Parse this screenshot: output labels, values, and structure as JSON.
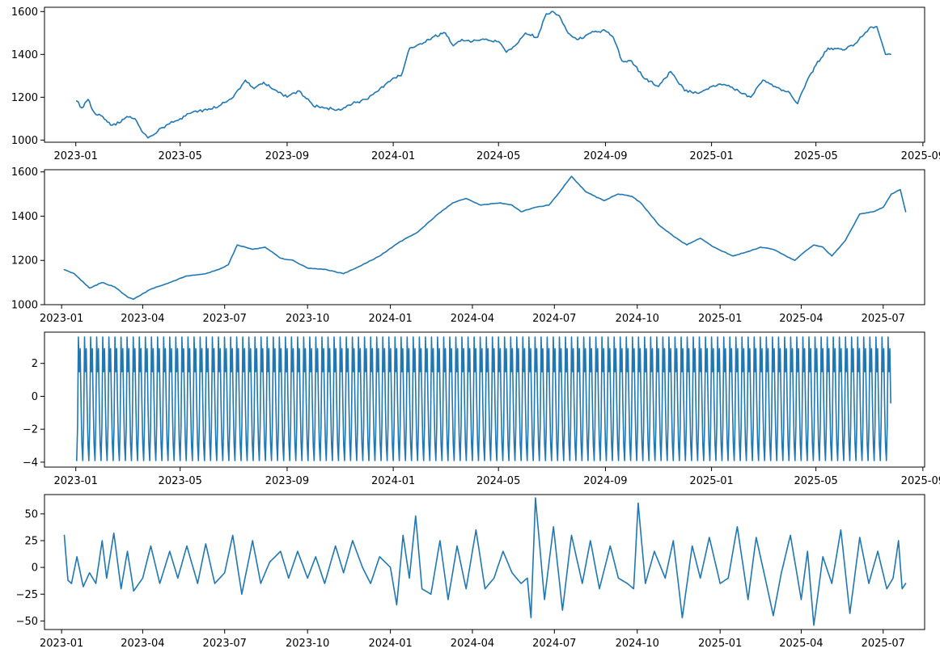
{
  "figure": {
    "line_color": "#1f77b4"
  },
  "chart_data": [
    {
      "type": "line",
      "series": [
        {
          "x": [
            "2023-01-02",
            "2023-01-08",
            "2023-01-15",
            "2023-01-22",
            "2023-02-01",
            "2023-02-10",
            "2023-02-20",
            "2023-03-01",
            "2023-03-10",
            "2023-03-18",
            "2023-03-25",
            "2023-04-05",
            "2023-04-15",
            "2023-05-01",
            "2023-05-15",
            "2023-06-01",
            "2023-06-15",
            "2023-07-01",
            "2023-07-15",
            "2023-07-25",
            "2023-08-05",
            "2023-08-20",
            "2023-09-01",
            "2023-09-15",
            "2023-10-01",
            "2023-10-15",
            "2023-11-01",
            "2023-11-15",
            "2023-12-01",
            "2023-12-15",
            "2024-01-01",
            "2024-01-10",
            "2024-01-20",
            "2024-02-01",
            "2024-02-15",
            "2024-03-01",
            "2024-03-10",
            "2024-03-20",
            "2024-04-01",
            "2024-04-15",
            "2024-05-01",
            "2024-05-10",
            "2024-05-20",
            "2024-06-01",
            "2024-06-15",
            "2024-06-25",
            "2024-07-01",
            "2024-07-10",
            "2024-07-20",
            "2024-08-01",
            "2024-08-15",
            "2024-09-01",
            "2024-09-10",
            "2024-09-20",
            "2024-10-01",
            "2024-10-15",
            "2024-11-01",
            "2024-11-15",
            "2024-12-01",
            "2024-12-15",
            "2025-01-01",
            "2025-01-15",
            "2025-02-01",
            "2025-02-15",
            "2025-03-01",
            "2025-03-15",
            "2025-04-01",
            "2025-04-10",
            "2025-04-20",
            "2025-05-01",
            "2025-05-15",
            "2025-06-01",
            "2025-06-15",
            "2025-07-01",
            "2025-07-10",
            "2025-07-20",
            "2025-07-26"
          ],
          "y": [
            1183,
            1150,
            1190,
            1130,
            1110,
            1070,
            1080,
            1110,
            1100,
            1040,
            1010,
            1040,
            1070,
            1100,
            1130,
            1140,
            1160,
            1200,
            1280,
            1240,
            1270,
            1230,
            1200,
            1230,
            1160,
            1150,
            1140,
            1170,
            1190,
            1230,
            1290,
            1300,
            1430,
            1450,
            1480,
            1500,
            1440,
            1470,
            1460,
            1470,
            1460,
            1410,
            1440,
            1500,
            1480,
            1590,
            1600,
            1580,
            1500,
            1470,
            1500,
            1510,
            1480,
            1370,
            1370,
            1290,
            1250,
            1320,
            1230,
            1220,
            1250,
            1260,
            1230,
            1200,
            1280,
            1250,
            1220,
            1170,
            1270,
            1350,
            1430,
            1420,
            1450,
            1520,
            1530,
            1400,
            1400
          ]
        }
      ],
      "xlim": [
        "2022-11-26",
        "2025-09-03"
      ],
      "ylim": [
        990,
        1620
      ],
      "x_ticks": [
        {
          "value": "2023-01-01",
          "label": "2023-01"
        },
        {
          "value": "2023-05-01",
          "label": "2023-05"
        },
        {
          "value": "2023-09-01",
          "label": "2023-09"
        },
        {
          "value": "2024-01-01",
          "label": "2024-01"
        },
        {
          "value": "2024-05-01",
          "label": "2024-05"
        },
        {
          "value": "2024-09-01",
          "label": "2024-09"
        },
        {
          "value": "2025-01-01",
          "label": "2025-01"
        },
        {
          "value": "2025-05-01",
          "label": "2025-05"
        },
        {
          "value": "2025-09-01",
          "label": "2025-09"
        }
      ],
      "y_ticks": [
        {
          "value": 1000,
          "label": "1000"
        },
        {
          "value": 1200,
          "label": "1200"
        },
        {
          "value": 1400,
          "label": "1400"
        },
        {
          "value": 1600,
          "label": "1600"
        }
      ],
      "grid": false
    },
    {
      "type": "line",
      "series": [
        {
          "x": [
            "2023-01-04",
            "2023-01-15",
            "2023-02-01",
            "2023-02-15",
            "2023-03-01",
            "2023-03-15",
            "2023-03-22",
            "2023-04-10",
            "2023-05-01",
            "2023-05-20",
            "2023-06-10",
            "2023-06-25",
            "2023-07-05",
            "2023-07-15",
            "2023-08-01",
            "2023-08-15",
            "2023-09-01",
            "2023-09-15",
            "2023-10-01",
            "2023-10-20",
            "2023-11-10",
            "2023-12-01",
            "2023-12-20",
            "2024-01-10",
            "2024-02-01",
            "2024-02-20",
            "2024-03-10",
            "2024-03-25",
            "2024-04-10",
            "2024-05-01",
            "2024-05-15",
            "2024-05-25",
            "2024-06-10",
            "2024-06-25",
            "2024-07-05",
            "2024-07-20",
            "2024-08-05",
            "2024-08-25",
            "2024-09-10",
            "2024-09-25",
            "2024-10-05",
            "2024-10-25",
            "2024-11-10",
            "2024-11-25",
            "2024-12-10",
            "2024-12-25",
            "2025-01-15",
            "2025-02-01",
            "2025-02-15",
            "2025-03-01",
            "2025-03-15",
            "2025-03-25",
            "2025-04-05",
            "2025-04-15",
            "2025-04-25",
            "2025-05-05",
            "2025-05-20",
            "2025-06-05",
            "2025-06-20",
            "2025-07-01",
            "2025-07-10",
            "2025-07-20",
            "2025-07-26"
          ],
          "y": [
            1158,
            1140,
            1075,
            1100,
            1080,
            1035,
            1025,
            1070,
            1100,
            1130,
            1140,
            1160,
            1180,
            1270,
            1250,
            1260,
            1210,
            1200,
            1165,
            1160,
            1140,
            1180,
            1220,
            1280,
            1330,
            1400,
            1460,
            1480,
            1450,
            1460,
            1450,
            1420,
            1440,
            1450,
            1500,
            1580,
            1510,
            1470,
            1500,
            1490,
            1460,
            1360,
            1310,
            1270,
            1300,
            1260,
            1220,
            1240,
            1260,
            1250,
            1220,
            1200,
            1240,
            1270,
            1260,
            1220,
            1290,
            1410,
            1420,
            1440,
            1500,
            1520,
            1420
          ]
        }
      ],
      "xlim": [
        "2022-12-13",
        "2025-08-16"
      ],
      "ylim": [
        1000,
        1610
      ],
      "x_ticks": [
        {
          "value": "2023-01-01",
          "label": "2023-01"
        },
        {
          "value": "2023-04-01",
          "label": "2023-04"
        },
        {
          "value": "2023-07-01",
          "label": "2023-07"
        },
        {
          "value": "2023-10-01",
          "label": "2023-10"
        },
        {
          "value": "2024-01-01",
          "label": "2024-01"
        },
        {
          "value": "2024-04-01",
          "label": "2024-04"
        },
        {
          "value": "2024-07-01",
          "label": "2024-07"
        },
        {
          "value": "2024-10-01",
          "label": "2024-10"
        },
        {
          "value": "2025-01-01",
          "label": "2025-01"
        },
        {
          "value": "2025-04-01",
          "label": "2025-04"
        },
        {
          "value": "2025-07-01",
          "label": "2025-07"
        }
      ],
      "y_ticks": [
        {
          "value": 1000,
          "label": "1000"
        },
        {
          "value": 1200,
          "label": "1200"
        },
        {
          "value": 1400,
          "label": "1400"
        },
        {
          "value": 1600,
          "label": "1600"
        }
      ],
      "grid": false
    },
    {
      "type": "line",
      "series": [
        {
          "start": "2023-01-02",
          "end": "2025-07-26",
          "cycle_days": 7,
          "cycle": [
            -3.9,
            -1.8,
            3.6,
            1.5,
            2.9,
            -0.4,
            -2.9
          ],
          "y_min": -3.9,
          "y_max": 3.6
        }
      ],
      "xlim": [
        "2022-11-26",
        "2025-09-03"
      ],
      "ylim": [
        -4.3,
        3.9
      ],
      "x_ticks": [
        {
          "value": "2023-01-01",
          "label": "2023-01"
        },
        {
          "value": "2023-05-01",
          "label": "2023-05"
        },
        {
          "value": "2023-09-01",
          "label": "2023-09"
        },
        {
          "value": "2024-01-01",
          "label": "2024-01"
        },
        {
          "value": "2024-05-01",
          "label": "2024-05"
        },
        {
          "value": "2024-09-01",
          "label": "2024-09"
        },
        {
          "value": "2025-01-01",
          "label": "2025-01"
        },
        {
          "value": "2025-05-01",
          "label": "2025-05"
        },
        {
          "value": "2025-09-01",
          "label": "2025-09"
        }
      ],
      "y_ticks": [
        {
          "value": -4,
          "label": "−4"
        },
        {
          "value": -2,
          "label": "−2"
        },
        {
          "value": 0,
          "label": "0"
        },
        {
          "value": 2,
          "label": "2"
        }
      ],
      "grid": false
    },
    {
      "type": "line",
      "series": [
        {
          "x": [
            "2023-01-04",
            "2023-01-08",
            "2023-01-12",
            "2023-01-18",
            "2023-01-25",
            "2023-02-01",
            "2023-02-08",
            "2023-02-15",
            "2023-02-20",
            "2023-02-28",
            "2023-03-08",
            "2023-03-15",
            "2023-03-22",
            "2023-04-01",
            "2023-04-10",
            "2023-04-20",
            "2023-05-01",
            "2023-05-10",
            "2023-05-20",
            "2023-06-01",
            "2023-06-10",
            "2023-06-20",
            "2023-07-01",
            "2023-07-10",
            "2023-07-20",
            "2023-08-01",
            "2023-08-10",
            "2023-08-20",
            "2023-09-01",
            "2023-09-10",
            "2023-09-20",
            "2023-10-01",
            "2023-10-10",
            "2023-10-20",
            "2023-11-01",
            "2023-11-10",
            "2023-11-20",
            "2023-12-01",
            "2023-12-10",
            "2023-12-20",
            "2024-01-01",
            "2024-01-08",
            "2024-01-15",
            "2024-01-22",
            "2024-01-29",
            "2024-02-05",
            "2024-02-15",
            "2024-02-25",
            "2024-03-05",
            "2024-03-15",
            "2024-03-25",
            "2024-04-05",
            "2024-04-15",
            "2024-04-25",
            "2024-05-05",
            "2024-05-15",
            "2024-05-25",
            "2024-06-01",
            "2024-06-05",
            "2024-06-10",
            "2024-06-20",
            "2024-06-30",
            "2024-07-10",
            "2024-07-20",
            "2024-08-01",
            "2024-08-10",
            "2024-08-20",
            "2024-09-01",
            "2024-09-10",
            "2024-09-20",
            "2024-09-27",
            "2024-10-02",
            "2024-10-10",
            "2024-10-20",
            "2024-11-01",
            "2024-11-10",
            "2024-11-20",
            "2024-12-01",
            "2024-12-10",
            "2024-12-20",
            "2025-01-01",
            "2025-01-10",
            "2025-01-20",
            "2025-02-01",
            "2025-02-10",
            "2025-02-20",
            "2025-03-01",
            "2025-03-10",
            "2025-03-20",
            "2025-04-01",
            "2025-04-08",
            "2025-04-15",
            "2025-04-25",
            "2025-05-05",
            "2025-05-15",
            "2025-05-25",
            "2025-06-05",
            "2025-06-15",
            "2025-06-25",
            "2025-07-05",
            "2025-07-12",
            "2025-07-18",
            "2025-07-22",
            "2025-07-26"
          ],
          "y": [
            30,
            -12,
            -15,
            10,
            -18,
            -5,
            -15,
            25,
            -10,
            32,
            -20,
            15,
            -22,
            -10,
            20,
            -15,
            15,
            -10,
            20,
            -15,
            22,
            -15,
            -5,
            30,
            -25,
            25,
            -15,
            5,
            15,
            -10,
            15,
            -10,
            10,
            -15,
            20,
            -5,
            25,
            0,
            -15,
            10,
            0,
            -35,
            30,
            -10,
            48,
            -20,
            -25,
            25,
            -30,
            20,
            -20,
            35,
            -20,
            -10,
            15,
            -5,
            -15,
            -10,
            -47,
            65,
            -30,
            38,
            -40,
            30,
            -15,
            25,
            -20,
            20,
            -10,
            -15,
            -20,
            60,
            -15,
            15,
            -10,
            25,
            -47,
            20,
            -10,
            28,
            -15,
            -10,
            38,
            -30,
            28,
            -10,
            -45,
            -5,
            30,
            -30,
            15,
            -54,
            10,
            -15,
            35,
            -43,
            28,
            -15,
            15,
            -20,
            -10,
            25,
            -20,
            -15
          ]
        }
      ],
      "xlim": [
        "2022-12-13",
        "2025-08-16"
      ],
      "ylim": [
        -58,
        68
      ],
      "x_ticks": [
        {
          "value": "2023-01-01",
          "label": "2023-01"
        },
        {
          "value": "2023-04-01",
          "label": "2023-04"
        },
        {
          "value": "2023-07-01",
          "label": "2023-07"
        },
        {
          "value": "2023-10-01",
          "label": "2023-10"
        },
        {
          "value": "2024-01-01",
          "label": "2024-01"
        },
        {
          "value": "2024-04-01",
          "label": "2024-04"
        },
        {
          "value": "2024-07-01",
          "label": "2024-07"
        },
        {
          "value": "2024-10-01",
          "label": "2024-10"
        },
        {
          "value": "2025-01-01",
          "label": "2025-01"
        },
        {
          "value": "2025-04-01",
          "label": "2025-04"
        },
        {
          "value": "2025-07-01",
          "label": "2025-07"
        }
      ],
      "y_ticks": [
        {
          "value": -50,
          "label": "−50"
        },
        {
          "value": -25,
          "label": "−25"
        },
        {
          "value": 0,
          "label": "0"
        },
        {
          "value": 25,
          "label": "25"
        },
        {
          "value": 50,
          "label": "50"
        }
      ],
      "grid": false
    }
  ]
}
